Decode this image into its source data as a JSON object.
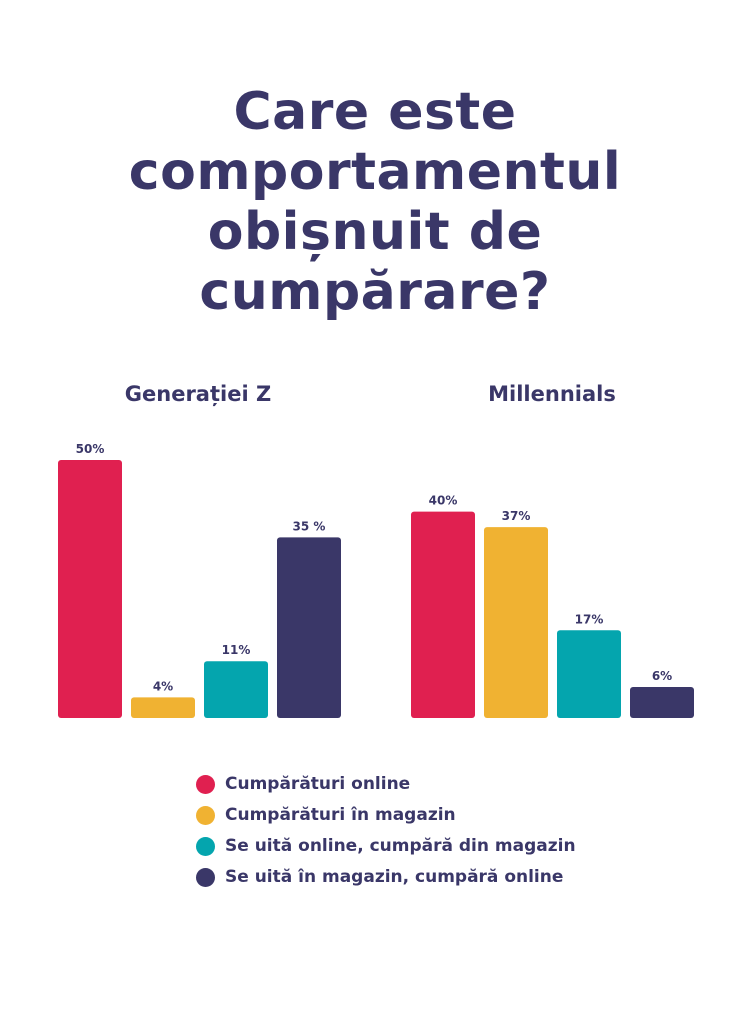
{
  "title_lines": [
    "Care este",
    "comportamentul",
    "obișnuit de",
    "cumpărare?"
  ],
  "colors": {
    "text": "#3a3768",
    "series": [
      "#e02050",
      "#f0b232",
      "#04a5ae",
      "#3a3768"
    ]
  },
  "legend": [
    "Cumpărături online",
    "Cumpărături în magazin",
    "Se uită online, cumpără din magazin",
    "Se uită în magazin, cumpără online"
  ],
  "chart_data": [
    {
      "type": "bar",
      "title": "Generației Z",
      "categories": [
        "Cumpărături online",
        "Cumpărături în magazin",
        "Se uită online, cumpără din magazin",
        "Se uită în magazin, cumpără online"
      ],
      "values": [
        50,
        4,
        11,
        35
      ],
      "value_labels": [
        "50%",
        "4%",
        "11%",
        "35 %"
      ],
      "ylim": [
        0,
        50
      ]
    },
    {
      "type": "bar",
      "title": "Millennials",
      "categories": [
        "Cumpărături online",
        "Cumpărături în magazin",
        "Se uită online, cumpără din magazin",
        "Se uită în magazin, cumpără online"
      ],
      "values": [
        40,
        37,
        17,
        6
      ],
      "value_labels": [
        "40%",
        "37%",
        "17%",
        "6%"
      ],
      "ylim": [
        0,
        50
      ]
    }
  ]
}
